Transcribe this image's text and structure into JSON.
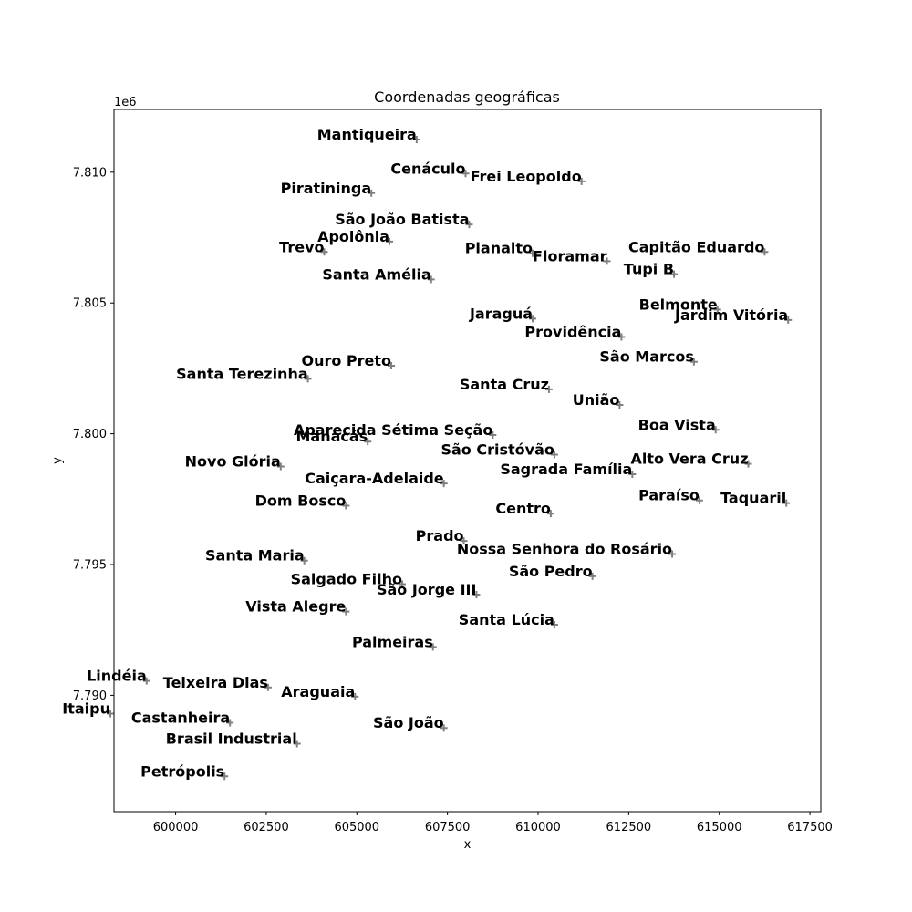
{
  "chart_data": {
    "type": "scatter",
    "title": "Coordenadas geográficas",
    "xlabel": "x",
    "ylabel": "y",
    "y_offset_label": "1e6",
    "xlim": [
      598300,
      617800
    ],
    "ylim": [
      7785550,
      7812400
    ],
    "y_scale_factor": 1000000,
    "x_ticks": [
      600000,
      602500,
      605000,
      607500,
      610000,
      612500,
      615000,
      617500
    ],
    "x_tick_labels": [
      "600000",
      "602500",
      "605000",
      "607500",
      "610000",
      "612500",
      "615000",
      "617500"
    ],
    "y_ticks": [
      7790000,
      7795000,
      7800000,
      7805000,
      7810000
    ],
    "y_tick_labels": [
      "7.790",
      "7.795",
      "7.800",
      "7.805",
      "7.810"
    ],
    "grid": false,
    "marker": "+",
    "marker_color": "#808080",
    "points": [
      {
        "name": "Mantiqueira",
        "x": 606650,
        "y": 7811250
      },
      {
        "name": "Cenáculo",
        "x": 608000,
        "y": 7809950
      },
      {
        "name": "Frei Leopoldo",
        "x": 611200,
        "y": 7809650
      },
      {
        "name": "Piratininga",
        "x": 605400,
        "y": 7809200
      },
      {
        "name": "São João Batista",
        "x": 608100,
        "y": 7808000
      },
      {
        "name": "Apolônia",
        "x": 605900,
        "y": 7807350
      },
      {
        "name": "Trevo",
        "x": 604100,
        "y": 7806950
      },
      {
        "name": "Planalto",
        "x": 609850,
        "y": 7806900
      },
      {
        "name": "Floramar",
        "x": 611900,
        "y": 7806600
      },
      {
        "name": "Capitão Eduardo",
        "x": 616250,
        "y": 7806950
      },
      {
        "name": "Tupi B",
        "x": 613750,
        "y": 7806100
      },
      {
        "name": "Santa Amélia",
        "x": 607050,
        "y": 7805900
      },
      {
        "name": "Belmonte",
        "x": 614950,
        "y": 7804750
      },
      {
        "name": "Jardim Vitória",
        "x": 616900,
        "y": 7804350
      },
      {
        "name": "Jaraguá",
        "x": 609850,
        "y": 7804400
      },
      {
        "name": "Providência",
        "x": 612300,
        "y": 7803700
      },
      {
        "name": "São Marcos",
        "x": 614300,
        "y": 7802750
      },
      {
        "name": "Ouro Preto",
        "x": 605950,
        "y": 7802600
      },
      {
        "name": "Santa Terezinha",
        "x": 603650,
        "y": 7802100
      },
      {
        "name": "Santa Cruz",
        "x": 610300,
        "y": 7801700
      },
      {
        "name": "União",
        "x": 612250,
        "y": 7801100
      },
      {
        "name": "Boa Vista",
        "x": 614900,
        "y": 7800150
      },
      {
        "name": "Aparecida Sétima Seção",
        "x": 608750,
        "y": 7799950
      },
      {
        "name": "Manacás",
        "x": 605300,
        "y": 7799700
      },
      {
        "name": "São Cristóvão",
        "x": 610450,
        "y": 7799200
      },
      {
        "name": "Alto Vera Cruz",
        "x": 615800,
        "y": 7798850
      },
      {
        "name": "Novo Glória",
        "x": 602900,
        "y": 7798750
      },
      {
        "name": "Sagrada Família",
        "x": 612600,
        "y": 7798450
      },
      {
        "name": "Caiçara-Adelaide",
        "x": 607400,
        "y": 7798100
      },
      {
        "name": "Paraíso",
        "x": 614450,
        "y": 7797450
      },
      {
        "name": "Taquaril",
        "x": 616850,
        "y": 7797350
      },
      {
        "name": "Dom Bosco",
        "x": 604700,
        "y": 7797250
      },
      {
        "name": "Centro",
        "x": 610350,
        "y": 7796950
      },
      {
        "name": "Prado",
        "x": 607950,
        "y": 7795900
      },
      {
        "name": "Nossa Senhora do Rosário",
        "x": 613700,
        "y": 7795400
      },
      {
        "name": "Santa Maria",
        "x": 603550,
        "y": 7795150
      },
      {
        "name": "São Pedro",
        "x": 611500,
        "y": 7794550
      },
      {
        "name": "Salgado Filho",
        "x": 606250,
        "y": 7794250
      },
      {
        "name": "São Jorge III",
        "x": 608300,
        "y": 7793850
      },
      {
        "name": "Vista Alegre",
        "x": 604700,
        "y": 7793200
      },
      {
        "name": "Santa Lúcia",
        "x": 610450,
        "y": 7792700
      },
      {
        "name": "Palmeiras",
        "x": 607100,
        "y": 7791850
      },
      {
        "name": "Lindéia",
        "x": 599200,
        "y": 7790550
      },
      {
        "name": "Teixeira Dias",
        "x": 602550,
        "y": 7790300
      },
      {
        "name": "Araguaia",
        "x": 604950,
        "y": 7789950
      },
      {
        "name": "Itaipu",
        "x": 598200,
        "y": 7789300
      },
      {
        "name": "Castanheira",
        "x": 601500,
        "y": 7788950
      },
      {
        "name": "São João",
        "x": 607400,
        "y": 7788750
      },
      {
        "name": "Brasil Industrial",
        "x": 603350,
        "y": 7788150
      },
      {
        "name": "Petrópolis",
        "x": 601350,
        "y": 7786900
      }
    ]
  }
}
